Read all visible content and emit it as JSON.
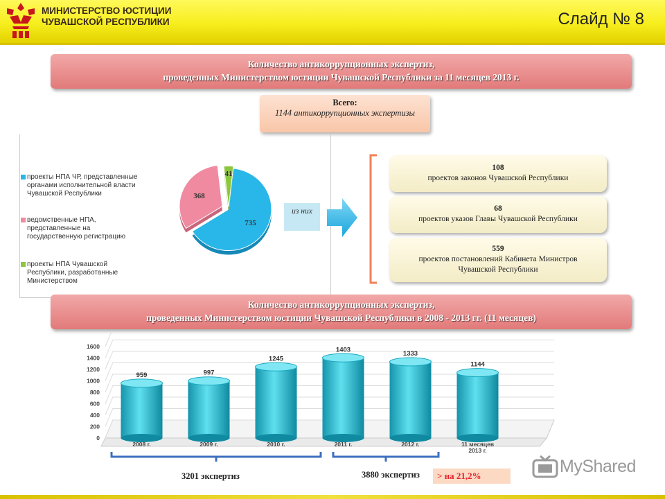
{
  "header": {
    "ministry_line1": "МИНИСТЕРСТВО ЮСТИЦИИ",
    "ministry_line2": "ЧУВАШСКОЙ РЕСПУБЛИКИ",
    "slide_number": "Слайд № 8"
  },
  "banner1": {
    "line1": "Количество антикоррупционных экспертиз,",
    "line2": "проведенных Министерством юстиции Чувашской Республики за 11 месяцев 2013 г."
  },
  "total": {
    "label": "Всего:",
    "value": "1144 антикоррупционных экспертизы"
  },
  "pie_legend": [
    "проекты НПА ЧР, представленные органами исполнительной власти Чувашской Республики",
    "ведомственные НПА, представленные на государственную регистрацию",
    "проекты НПА Чувашской Республики, разработанные Министерством"
  ],
  "of_them": "из них",
  "breakdown": [
    {
      "number": "108",
      "text": "проектов законов Чувашской Республики"
    },
    {
      "number": "68",
      "text": "проектов указов Главы Чувашской Республики"
    },
    {
      "number": "559",
      "text": "проектов постановлений Кабинета Министров Чувашской Республики"
    }
  ],
  "banner2": {
    "line1": "Количество антикоррупционных экспертиз,",
    "line2": "проведенных Министерством юстиции Чувашской Республики в 2008 - 2013 гг. (11 месяцев)"
  },
  "summary": {
    "left": "3201 экспертиз",
    "right": "3880 экспертиз",
    "increase": "> на 21,2%"
  },
  "watermark": "MyShared",
  "colors": {
    "pie_blue": "#29b6e8",
    "pie_pink": "#f08aa0",
    "pie_green": "#8dc63f",
    "bar_cyan": "#22c0d6",
    "banner_red": "#e27a7a",
    "brace_blue": "#3c6fbf"
  },
  "chart_data": [
    {
      "type": "pie",
      "labels": [
        "проекты НПА ЧР, представленные органами исполнительной власти Чувашской Республики",
        "ведомственные НПА, представленные на государственную регистрацию",
        "проекты НПА Чувашской Республики, разработанные Министерством"
      ],
      "values": [
        735,
        368,
        41
      ],
      "data_labels": [
        "735",
        "368",
        "41"
      ],
      "title": "",
      "legend": "left"
    },
    {
      "type": "bar",
      "categories": [
        "2008 г.",
        "2009 г.",
        "2010 г.",
        "2011 г.",
        "2012 г.",
        "11 месяцев 2013 г."
      ],
      "values": [
        959,
        997,
        1245,
        1403,
        1333,
        1144
      ],
      "data_labels": [
        "959",
        "997",
        "1245",
        "1403",
        "1333",
        "1144"
      ],
      "yticks": [
        "0",
        "200",
        "400",
        "600",
        "800",
        "1000",
        "1200",
        "1400",
        "1600"
      ],
      "ylim": [
        0,
        1600
      ],
      "title": "",
      "xlabel": "",
      "ylabel": "",
      "grid": true
    }
  ]
}
